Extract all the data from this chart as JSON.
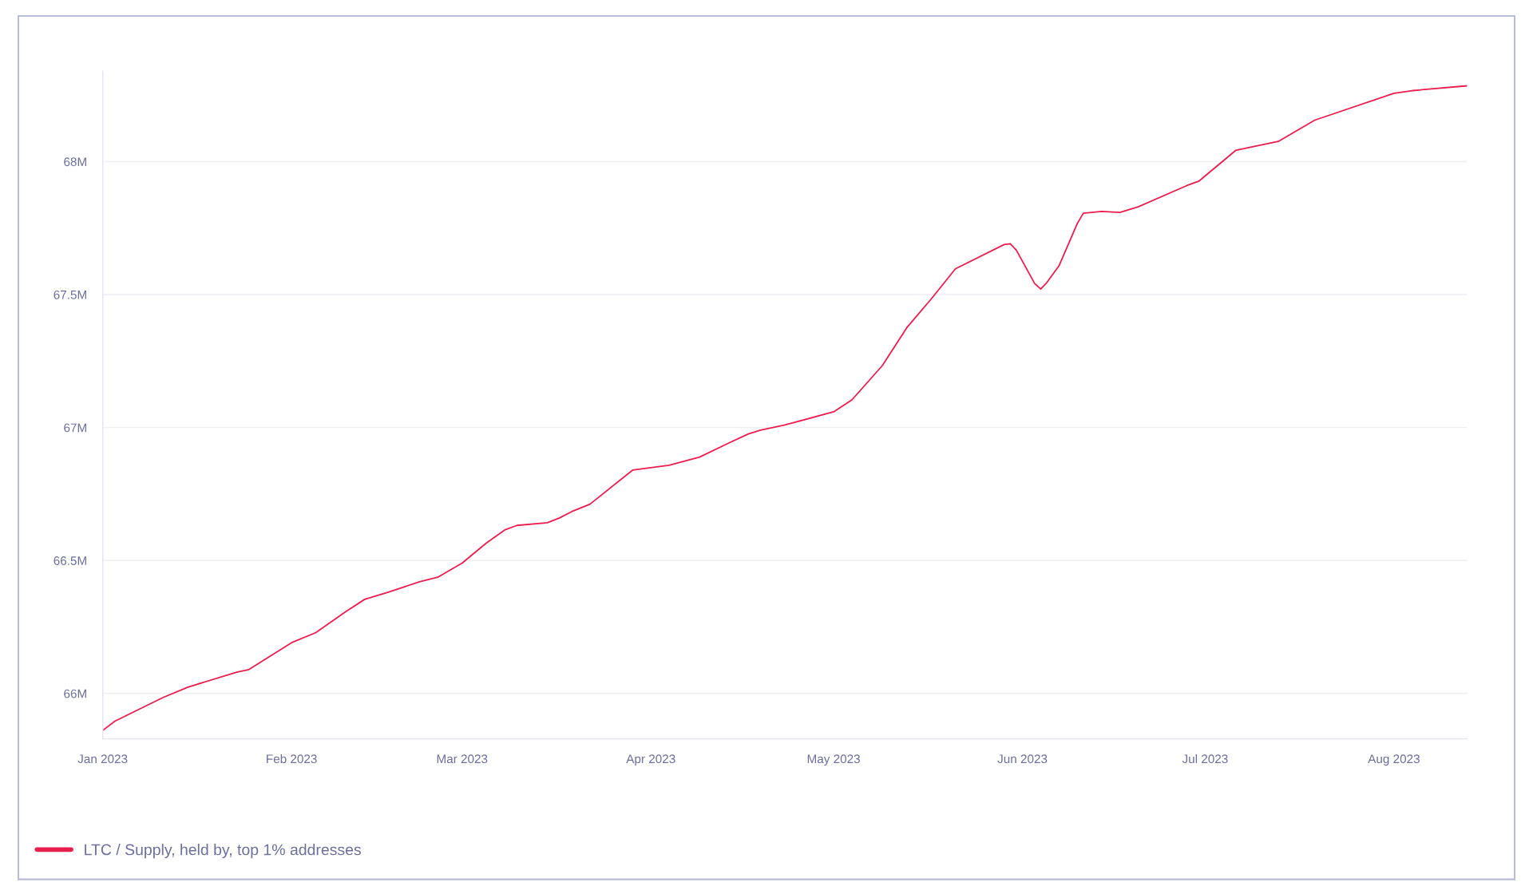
{
  "chart_data": {
    "type": "line",
    "x": [
      "2023-01-01",
      "2023-01-03",
      "2023-01-11",
      "2023-01-15",
      "2023-01-23",
      "2023-01-25",
      "2023-02-01",
      "2023-02-05",
      "2023-02-10",
      "2023-02-13",
      "2023-02-17",
      "2023-02-22",
      "2023-02-25",
      "2023-03-01",
      "2023-03-05",
      "2023-03-08",
      "2023-03-10",
      "2023-03-15",
      "2023-03-17",
      "2023-03-19",
      "2023-03-22",
      "2023-03-29",
      "2023-04-04",
      "2023-04-09",
      "2023-04-14",
      "2023-04-17",
      "2023-04-19",
      "2023-04-23",
      "2023-05-01",
      "2023-05-04",
      "2023-05-09",
      "2023-05-13",
      "2023-05-17",
      "2023-05-21",
      "2023-05-29",
      "2023-05-30",
      "2023-05-31",
      "2023-06-03",
      "2023-06-04",
      "2023-06-05",
      "2023-06-07",
      "2023-06-10",
      "2023-06-11",
      "2023-06-14",
      "2023-06-17",
      "2023-06-20",
      "2023-06-28",
      "2023-06-30",
      "2023-07-06",
      "2023-07-08",
      "2023-07-13",
      "2023-07-19",
      "2023-08-01",
      "2023-08-04",
      "2023-08-13"
    ],
    "series": [
      {
        "name": "LTC / Supply, held by, top 1% addresses",
        "color": "#e91e4e",
        "values": [
          65861000,
          65896000,
          65986000,
          66024000,
          66080000,
          66090000,
          66191000,
          66229000,
          66309000,
          66354000,
          66382000,
          66420000,
          66437000,
          66490000,
          66566000,
          66615000,
          66632000,
          66642000,
          66660000,
          66684000,
          66712000,
          66840000,
          66858000,
          66889000,
          66944000,
          66976000,
          66990000,
          67010000,
          67059000,
          67104000,
          67233000,
          67375000,
          67483000,
          67597000,
          67688000,
          67691000,
          67667000,
          67542000,
          67521000,
          67545000,
          67608000,
          67767000,
          67806000,
          67813000,
          67809000,
          67830000,
          67910000,
          67927000,
          68042000,
          68052000,
          68076000,
          68156000,
          68257000,
          68267000,
          68285000
        ]
      }
    ],
    "xlim": [
      "2023-01-01",
      "2023-08-13"
    ],
    "xticks": [
      {
        "value": "2023-01-01",
        "label": "Jan 2023"
      },
      {
        "value": "2023-02-01",
        "label": "Feb 2023"
      },
      {
        "value": "2023-03-01",
        "label": "Mar 2023"
      },
      {
        "value": "2023-04-01",
        "label": "Apr 2023"
      },
      {
        "value": "2023-05-01",
        "label": "May 2023"
      },
      {
        "value": "2023-06-01",
        "label": "Jun 2023"
      },
      {
        "value": "2023-07-01",
        "label": "Jul 2023"
      },
      {
        "value": "2023-08-01",
        "label": "Aug 2023"
      }
    ],
    "ylim": [
      65830000,
      68340000
    ],
    "yticks": [
      {
        "value": 66000000,
        "label": "66M"
      },
      {
        "value": 66500000,
        "label": "66.5M"
      },
      {
        "value": 67000000,
        "label": "67M"
      },
      {
        "value": 67500000,
        "label": "67.5M"
      },
      {
        "value": 68000000,
        "label": "68M"
      }
    ],
    "grid": "y",
    "legend": "bottom left",
    "line_style": "solid",
    "marker": "none"
  }
}
